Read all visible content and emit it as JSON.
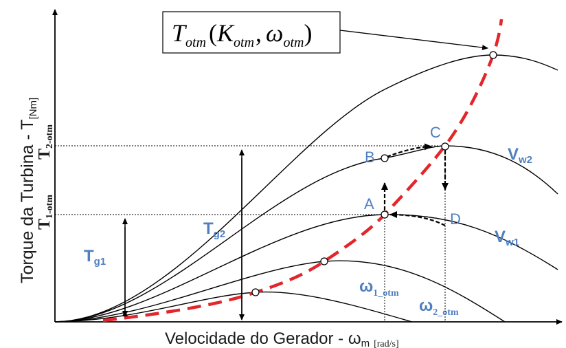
{
  "diagram": {
    "formula_box": {
      "T": "T",
      "T_sub": "otm",
      "open_paren": "(",
      "K": "K",
      "K_sub": "otm",
      "comma": ",",
      "omega": "ω",
      "omega_sub": "otm",
      "close_paren": ")"
    },
    "y_axis": {
      "label_main": "Torque da Turbina - T",
      "label_unit": "[Nm]"
    },
    "x_axis": {
      "label_main": "Velocidade do Gerador - ω",
      "label_sub": "m",
      "label_unit": "[rad/s]"
    },
    "y_ticks": {
      "t2_main": "T",
      "t2_sub": "2-otm",
      "t1_main": "T",
      "t1_sub": "1-otm"
    },
    "points": {
      "A": "A",
      "B": "B",
      "C": "C",
      "D": "D"
    },
    "curve_labels": {
      "vw2_main": "V",
      "vw2_sub": "w2",
      "vw1_main": "V",
      "vw1_sub": "w1"
    },
    "arrows": {
      "tg1_main": "T",
      "tg1_sub": "g1",
      "tg2_main": "T",
      "tg2_sub": "g2"
    },
    "omega_labels": {
      "w1_main": "ω",
      "w1_sub": "1_otm",
      "w2_main": "ω",
      "w2_sub": "2_otm"
    },
    "colors": {
      "optimal_curve": "#e3262b",
      "label_blue": "#4f7fbf",
      "axis": "#000000"
    }
  }
}
